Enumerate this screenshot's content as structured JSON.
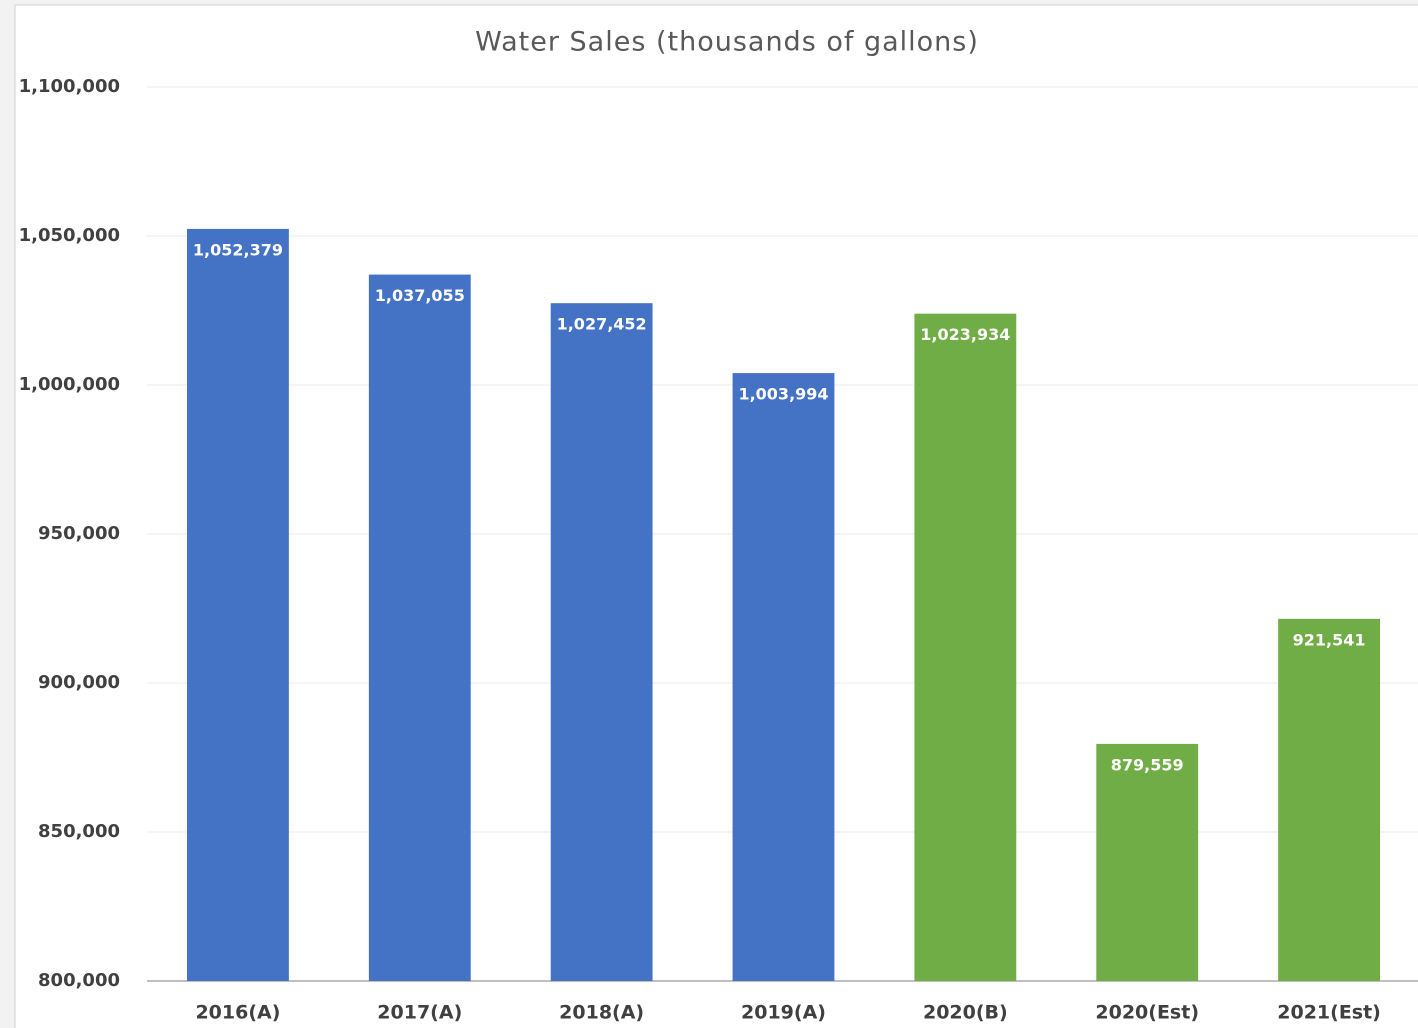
{
  "chart_data": {
    "type": "bar",
    "title": "Water Sales (thousands of gallons)",
    "categories": [
      "2016(A)",
      "2017(A)",
      "2018(A)",
      "2019(A)",
      "2020(B)",
      "2020(Est)",
      "2021(Est)"
    ],
    "values": [
      1052379,
      1037055,
      1027452,
      1003994,
      1023934,
      879559,
      921541
    ],
    "value_labels": [
      "1,052,379",
      "1,037,055",
      "1,027,452",
      "1,003,994",
      "1,023,934",
      "879,559",
      "921,541"
    ],
    "colors": [
      "#4472c4",
      "#4472c4",
      "#4472c4",
      "#4472c4",
      "#70ad47",
      "#70ad47",
      "#70ad47"
    ],
    "ylim": [
      800000,
      1100000
    ],
    "yticks": [
      {
        "value": 800000,
        "label": "800,000"
      },
      {
        "value": 850000,
        "label": "850,000"
      },
      {
        "value": 900000,
        "label": "900,000"
      },
      {
        "value": 950000,
        "label": "950,000"
      },
      {
        "value": 1000000,
        "label": "1,000,000"
      },
      {
        "value": 1050000,
        "label": "1,050,000"
      },
      {
        "value": 1100000,
        "label": "1,100,000"
      }
    ],
    "grid": true
  }
}
